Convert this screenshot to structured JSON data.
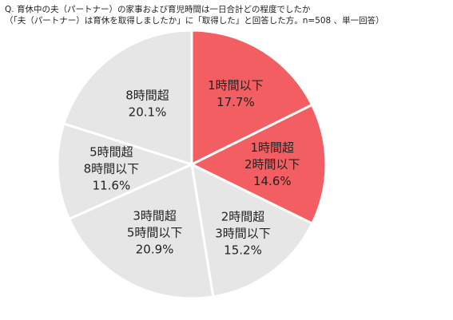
{
  "header": {
    "question_line": "Q. 育休中の夫（パートナー）の家事および育児時間は一日合計どの程度でしたか",
    "condition_line": "（「夫（パートナー）は育休を取得しましたか」に「取得した」と回答した方。n=508 、単一回答）"
  },
  "chart_data": {
    "type": "pie",
    "title": "",
    "slices": [
      {
        "label": "1時間以下",
        "value": 17.7,
        "value_text": "17.7%",
        "color": "#f25e61"
      },
      {
        "label": "1時間超 2時間以下",
        "value": 14.6,
        "value_text": "14.6%",
        "color": "#f25e61"
      },
      {
        "label": "2時間超 3時間以下",
        "value": 15.2,
        "value_text": "15.2%",
        "color": "#e6e6e6"
      },
      {
        "label": "3時間超 5時間以下",
        "value": 20.9,
        "value_text": "20.9%",
        "color": "#e6e6e6"
      },
      {
        "label": "5時間超 8時間以下",
        "value": 11.6,
        "value_text": "11.6%",
        "color": "#e6e6e6"
      },
      {
        "label": "8時間超",
        "value": 20.1,
        "value_text": "20.1%",
        "color": "#e6e6e6"
      }
    ],
    "start_angle": "12 o'clock",
    "direction": "clockwise",
    "slice_border_color": "#ffffff"
  }
}
